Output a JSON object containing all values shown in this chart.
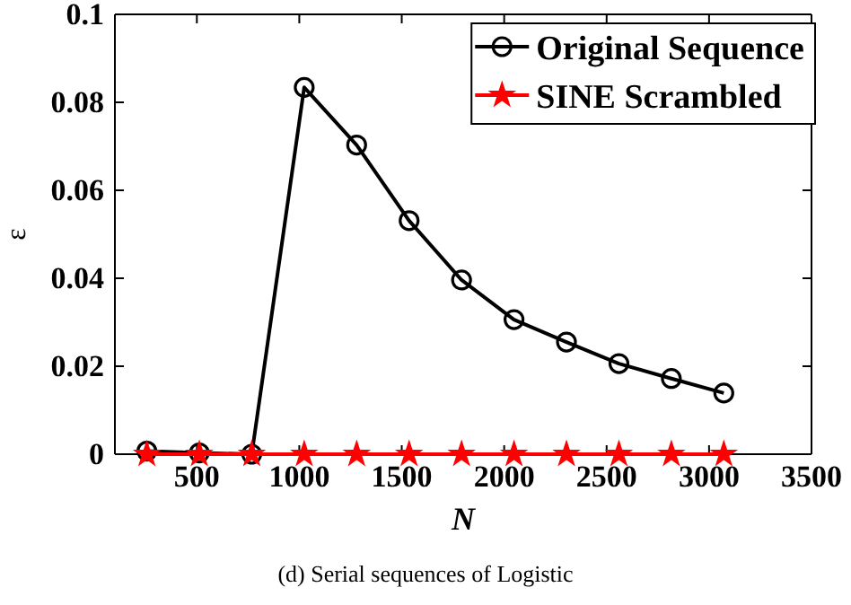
{
  "chart_data": {
    "type": "line",
    "xlabel": "N",
    "ylabel": "ε",
    "x": [
      256,
      512,
      768,
      1024,
      1280,
      1536,
      1792,
      2048,
      2304,
      2560,
      2816,
      3072
    ],
    "series": [
      {
        "name": "Original Sequence",
        "color": "#000000",
        "marker": "circle",
        "values": [
          0.0007,
          0.0003,
          0,
          0.0834,
          0.0703,
          0.0531,
          0.0396,
          0.0306,
          0.0255,
          0.0206,
          0.0172,
          0.0139
        ]
      },
      {
        "name": "SINE Scrambled",
        "color": "#ff0000",
        "marker": "star",
        "values": [
          0,
          0,
          0,
          0,
          0,
          0,
          0,
          0,
          0,
          0,
          0,
          0
        ]
      }
    ],
    "xlim": [
      100,
      3500
    ],
    "xticks": [
      500,
      1000,
      1500,
      2000,
      2500,
      3000,
      3500
    ],
    "ylim": [
      0,
      0.1
    ],
    "yticks": [
      {
        "value": 0,
        "label": "0"
      },
      0.02,
      0.04,
      0.06,
      0.08,
      0.1
    ],
    "grid": false,
    "legend": "top right",
    "line_style": "solid",
    "annotations": [
      "(d) Serial sequences of Logistic"
    ]
  }
}
